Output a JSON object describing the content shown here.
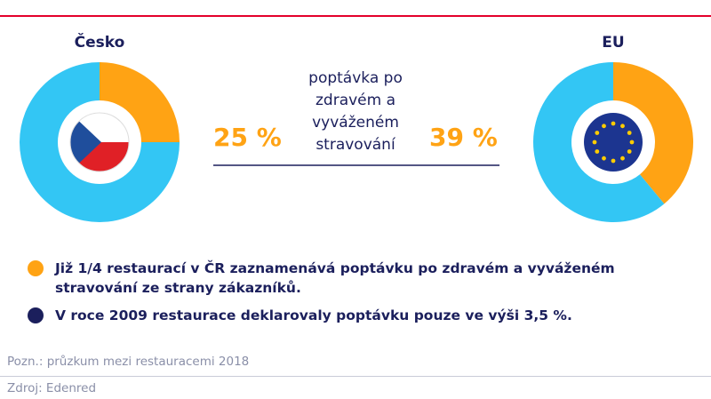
{
  "chart_data": [
    {
      "type": "donut",
      "title": "Česko",
      "values": [
        25,
        75
      ],
      "value_label": "25 %",
      "colors": [
        "#ffa314",
        "#33c6f4"
      ]
    },
    {
      "type": "donut",
      "title": "EU",
      "values": [
        39,
        61
      ],
      "value_label": "39 %",
      "colors": [
        "#ffa314",
        "#33c6f4"
      ]
    }
  ],
  "caption": "poptávka po zdravém a vyváženém stravování",
  "bullets": [
    {
      "text": "Již 1/4 restaurací v ČR zaznamenává poptávku po zdravém a vyváženém stravování ze strany zákazníků.",
      "color": "#ffa314"
    },
    {
      "text": "V roce 2009 restaurace deklarovaly poptávku pouze ve výši 3,5 %.",
      "color": "#1b1f5c"
    }
  ],
  "note": "Pozn.: průzkum mezi restauracemi 2018",
  "source": "Zdroj: Edenred"
}
